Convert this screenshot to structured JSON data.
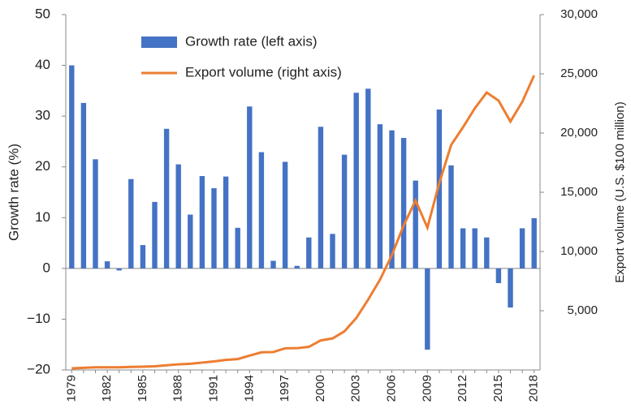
{
  "chart_data": {
    "type": "combo",
    "categories": [
      "1979",
      null,
      null,
      "1982",
      null,
      null,
      "1985",
      null,
      null,
      "1988",
      null,
      null,
      "1991",
      null,
      null,
      "1994",
      null,
      null,
      "1997",
      null,
      null,
      "2000",
      null,
      null,
      "2003",
      null,
      null,
      "2006",
      null,
      null,
      "2009",
      null,
      null,
      "2012",
      null,
      null,
      "2015",
      null,
      null,
      "2018"
    ],
    "series": [
      {
        "name": "Growth rate (left axis)",
        "type": "bar",
        "color": "#4472c4",
        "axis": "y",
        "values": [
          40,
          32.6,
          21.5,
          1.4,
          -0.4,
          17.6,
          4.6,
          13.1,
          27.5,
          20.5,
          10.6,
          18.2,
          15.8,
          18.1,
          8.0,
          31.9,
          22.9,
          1.5,
          21.0,
          0.5,
          6.1,
          27.9,
          6.8,
          22.4,
          34.6,
          35.4,
          28.4,
          27.2,
          25.7,
          17.3,
          -16.0,
          31.3,
          20.3,
          7.9,
          7.9,
          6.1,
          -2.9,
          -7.7,
          7.9,
          9.9
        ]
      },
      {
        "name": "Export volume (right axis)",
        "type": "line",
        "color": "#ed7d31",
        "axis": "y2",
        "values": [
          137,
          181,
          220,
          223,
          222,
          261,
          274,
          309,
          394,
          475,
          525,
          621,
          719,
          849,
          917,
          1210,
          1488,
          1511,
          1828,
          1837,
          1949,
          2492,
          2661,
          3256,
          4382,
          5933,
          7620,
          9690,
          12205,
          14307,
          12016,
          15778,
          18984,
          20487,
          22090,
          23423,
          22735,
          20976,
          22633,
          24867
        ]
      }
    ],
    "y_label": "Growth rate (%)",
    "y2_label": "Export volume (U.S. $100 million)",
    "ylim": [
      -20,
      50
    ],
    "yticks": [
      {
        "value": -20,
        "label": "−20"
      },
      {
        "value": -10,
        "label": "−10"
      },
      0,
      10,
      20,
      30,
      40,
      50
    ],
    "y2lim": [
      0,
      30000
    ],
    "y2ticks": [
      {
        "value": 5000,
        "label": "5,000"
      },
      {
        "value": 10000,
        "label": "10,000"
      },
      {
        "value": 15000,
        "label": "15,000"
      },
      {
        "value": 20000,
        "label": "20,000"
      },
      {
        "value": 25000,
        "label": "25,000"
      },
      {
        "value": 30000,
        "label": "30,000"
      }
    ],
    "legend": "top"
  }
}
